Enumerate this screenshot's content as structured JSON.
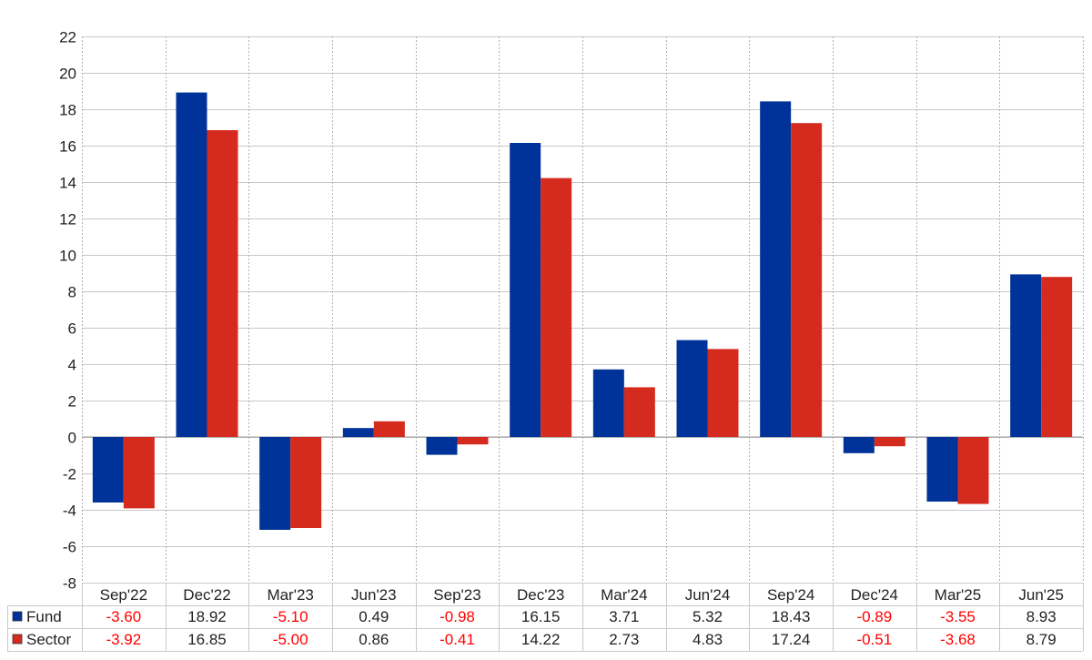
{
  "chart_data": {
    "type": "bar",
    "categories": [
      "Sep'22",
      "Dec'22",
      "Mar'23",
      "Jun'23",
      "Sep'23",
      "Dec'23",
      "Mar'24",
      "Jun'24",
      "Sep'24",
      "Dec'24",
      "Mar'25",
      "Jun'25"
    ],
    "series": [
      {
        "name": "Fund",
        "color": "#003399",
        "values": [
          -3.6,
          18.92,
          -5.1,
          0.49,
          -0.98,
          16.15,
          3.71,
          5.32,
          18.43,
          -0.89,
          -3.55,
          8.93
        ],
        "labels": [
          "-3.60",
          "18.92",
          "-5.10",
          "0.49",
          "-0.98",
          "16.15",
          "3.71",
          "5.32",
          "18.43",
          "-0.89",
          "-3.55",
          "8.93"
        ]
      },
      {
        "name": "Sector",
        "color": "#d52b1e",
        "values": [
          -3.92,
          16.85,
          -5.0,
          0.86,
          -0.41,
          14.22,
          2.73,
          4.83,
          17.24,
          -0.51,
          -3.68,
          8.79
        ],
        "labels": [
          "-3.92",
          "16.85",
          "-5.00",
          "0.86",
          "-0.41",
          "14.22",
          "2.73",
          "4.83",
          "17.24",
          "-0.51",
          "-3.68",
          "8.79"
        ]
      }
    ],
    "ylim": [
      -8,
      22
    ],
    "yticks": [
      "-8",
      "-6",
      "-4",
      "-2",
      "0",
      "2",
      "4",
      "6",
      "8",
      "10",
      "12",
      "14",
      "16",
      "18",
      "20",
      "22"
    ],
    "grid": true,
    "legend": "data-table-bottom",
    "negative_color": "#ff0000",
    "title": "",
    "xlabel": "",
    "ylabel": ""
  }
}
